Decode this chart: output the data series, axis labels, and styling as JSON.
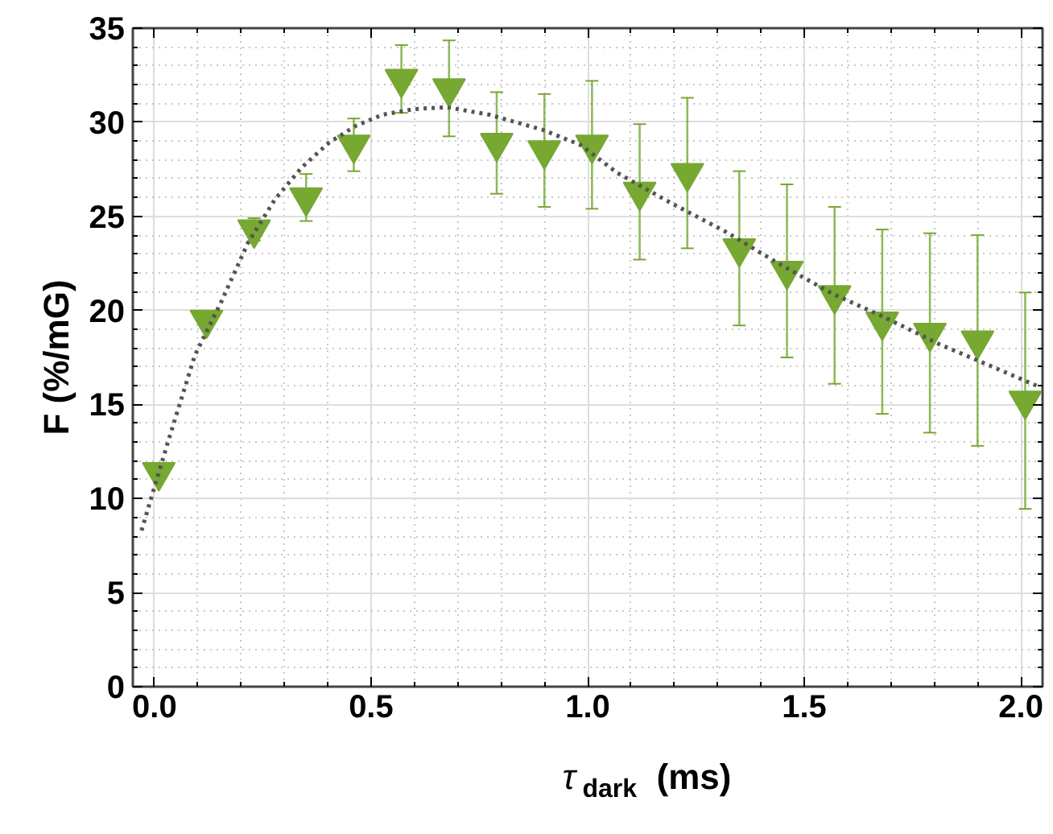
{
  "chart_data": {
    "type": "scatter",
    "xlabel": "τ$_{dark}$ (ms)",
    "ylabel": "F (%/mG)",
    "xlim": [
      -0.05,
      2.05
    ],
    "ylim": [
      0,
      35
    ],
    "xticks": [
      {
        "value": 0,
        "label": "0.0"
      },
      {
        "value": 0.5,
        "label": "0.5"
      },
      {
        "value": 1,
        "label": "1.0"
      },
      {
        "value": 1.5,
        "label": "1.5"
      },
      {
        "value": 2,
        "label": "2.0"
      }
    ],
    "yticks": [
      0,
      5,
      10,
      15,
      20,
      25,
      30,
      35
    ],
    "grid": true,
    "marker": "triangle",
    "x": [
      0.01,
      0.12,
      0.23,
      0.35,
      0.46,
      0.57,
      0.68,
      0.79,
      0.9,
      1.01,
      1.12,
      1.23,
      1.35,
      1.46,
      1.57,
      1.68,
      1.79,
      1.9,
      2.01
    ],
    "series": [
      {
        "color": "#76a832",
        "values": [
          11.4,
          19.5,
          24.3,
          26.0,
          28.8,
          32.3,
          31.8,
          28.9,
          28.5,
          28.8,
          26.3,
          27.3,
          23.3,
          22.1,
          20.8,
          19.4,
          18.8,
          18.4,
          15.2
        ],
        "errors": [
          0.3,
          0.3,
          0.6,
          1.25,
          1.4,
          1.8,
          2.55,
          2.7,
          3.0,
          3.4,
          3.6,
          4.0,
          4.1,
          4.6,
          4.7,
          4.9,
          5.3,
          5.6,
          5.75
        ]
      },
      {
        "type": "line",
        "color": "#555555",
        "line_style": "dotted",
        "marker": "none",
        "x": [
          -0.03,
          0.031,
          0.093,
          0.155,
          0.216,
          0.278,
          0.34,
          0.402,
          0.464,
          0.526,
          0.6,
          0.674,
          0.773,
          0.896,
          0.983,
          1.069,
          1.193,
          1.317,
          1.44,
          1.564,
          1.688,
          1.812,
          1.935,
          2.046
        ],
        "values": [
          8.3,
          13.0,
          17.6,
          20.5,
          23.6,
          25.9,
          27.6,
          28.9,
          29.8,
          30.4,
          30.7,
          30.8,
          30.4,
          29.6,
          28.8,
          27.3,
          25.7,
          24.2,
          22.5,
          20.9,
          19.6,
          18.2,
          17.0,
          15.9
        ]
      }
    ]
  }
}
